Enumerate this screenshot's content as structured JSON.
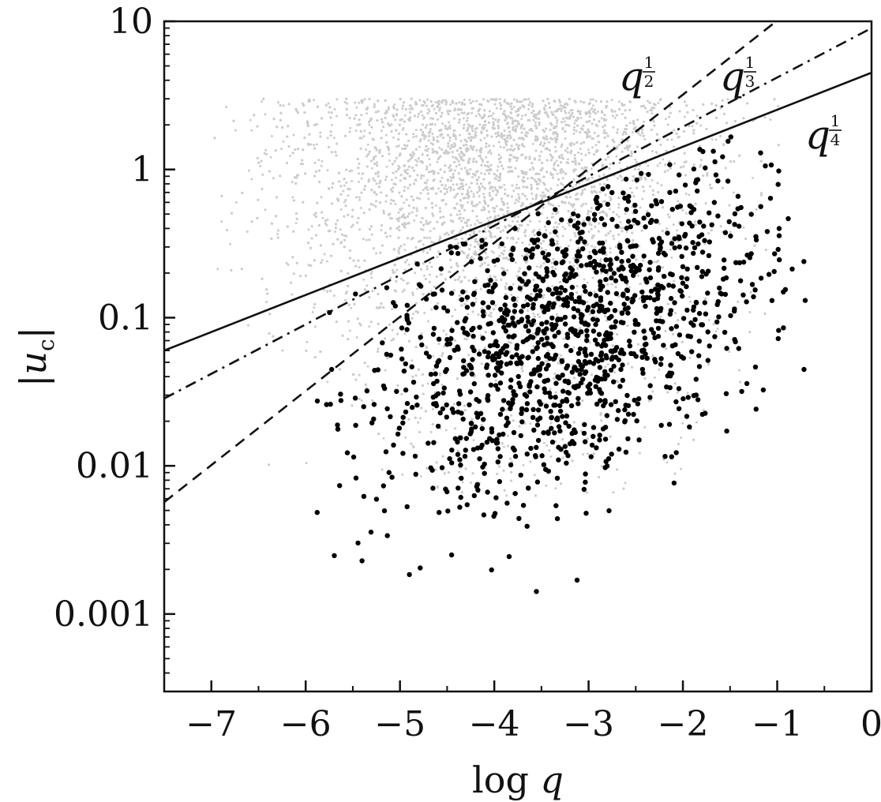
{
  "chart_data": {
    "type": "scatter",
    "title": "",
    "xlabel": "log q",
    "ylabel": "|u_c|",
    "xlim": [
      -7.5,
      0
    ],
    "ylim": [
      0.0003,
      10
    ],
    "yscale": "log",
    "grid": false,
    "x_ticks": [
      -7,
      -6,
      -5,
      -4,
      -3,
      -2,
      -1,
      0
    ],
    "x_tick_labels": [
      "−7",
      "−6",
      "−5",
      "−4",
      "−3",
      "−2",
      "−1",
      "0"
    ],
    "y_ticks": [
      0.001,
      0.01,
      0.1,
      1,
      10
    ],
    "y_tick_labels": [
      "0.001",
      "0.01",
      "0.1",
      "1",
      "10"
    ],
    "scatter_series": [
      {
        "color": "#cccccc",
        "description": "dense background population",
        "regions": [
          {
            "x": [
              -7.0,
              -0.9
            ],
            "log10_y": [
              -1.3,
              0.47
            ]
          },
          {
            "x": [
              -6.5,
              -1.2
            ],
            "log10_y": [
              -2.4,
              -1.3
            ]
          },
          {
            "x": [
              -5.5,
              -1.5
            ],
            "log10_y": [
              -3.3,
              -2.4
            ]
          }
        ]
      },
      {
        "color": "#000000",
        "description": "highlighted population",
        "regions": [
          {
            "x": [
              -5.9,
              -0.7
            ],
            "log10_y": [
              -3.0,
              0.1
            ]
          }
        ]
      }
    ],
    "lines": [
      {
        "style": "dashed",
        "slope": 0.5,
        "y_at_x0": 32,
        "label": "q",
        "exponent_num": "1",
        "exponent_den": "2"
      },
      {
        "style": "dashdot",
        "slope": 0.3333,
        "y_at_x0": 9,
        "label": "q",
        "exponent_num": "1",
        "exponent_den": "3"
      },
      {
        "style": "solid",
        "slope": 0.25,
        "y_at_x0": 4.5,
        "label": "q",
        "exponent_num": "1",
        "exponent_den": "4"
      }
    ]
  }
}
